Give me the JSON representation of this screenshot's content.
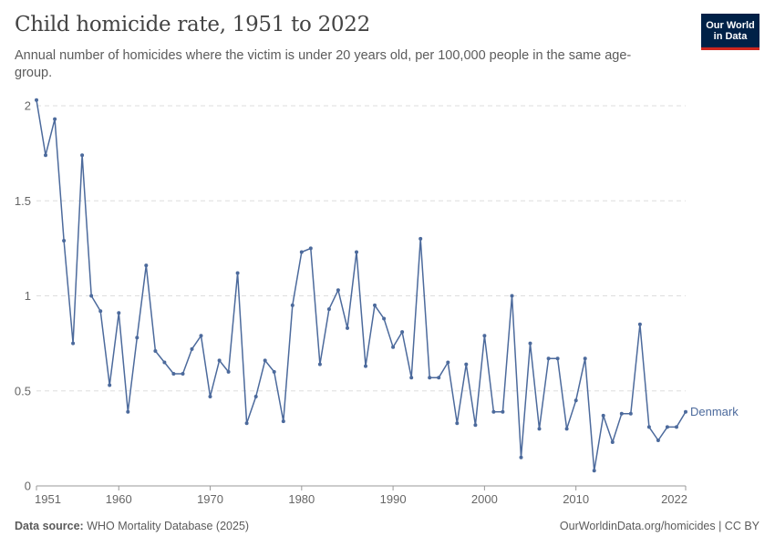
{
  "header": {
    "title": "Child homicide rate, 1951 to 2022",
    "subtitle": "Annual number of homicides where the victim is under 20 years old, per 100,000 people in the same age-group."
  },
  "logo": {
    "line1": "Our World",
    "line2": "in Data"
  },
  "footer": {
    "source_label": "Data source:",
    "source_value": "WHO Mortality Database (2025)",
    "credit": "OurWorldinData.org/homicides | CC BY"
  },
  "colors": {
    "series": "#4c6a9c",
    "grid": "#dddddd",
    "axis": "#666666",
    "logo_bg": "#002147",
    "logo_accent": "#ce261e"
  },
  "chart_data": {
    "type": "line",
    "title": "Child homicide rate, 1951 to 2022",
    "xlim": [
      1951,
      2022
    ],
    "ylim": [
      0,
      2
    ],
    "x_ticks": [
      1951,
      1960,
      1970,
      1980,
      1990,
      2000,
      2010,
      2022
    ],
    "y_ticks": [
      0,
      0.5,
      1,
      1.5,
      2
    ],
    "y_tick_labels": [
      "0",
      "0.5",
      "1",
      "1.5",
      "2"
    ],
    "grid": "horizontal dashed",
    "legend": "inline label at end of line",
    "series": [
      {
        "name": "Denmark",
        "x": [
          1951,
          1952,
          1953,
          1954,
          1955,
          1956,
          1957,
          1958,
          1959,
          1960,
          1961,
          1962,
          1963,
          1964,
          1965,
          1966,
          1967,
          1968,
          1969,
          1970,
          1971,
          1972,
          1973,
          1974,
          1975,
          1976,
          1977,
          1978,
          1979,
          1980,
          1981,
          1982,
          1983,
          1984,
          1985,
          1986,
          1987,
          1988,
          1989,
          1990,
          1991,
          1992,
          1993,
          1994,
          1995,
          1996,
          1997,
          1998,
          1999,
          2000,
          2001,
          2002,
          2003,
          2004,
          2005,
          2006,
          2007,
          2008,
          2009,
          2010,
          2011,
          2012,
          2013,
          2014,
          2015,
          2016,
          2017,
          2018,
          2019,
          2020,
          2021,
          2022
        ],
        "values": [
          2.03,
          1.74,
          1.93,
          1.29,
          0.75,
          1.74,
          1.0,
          0.92,
          0.53,
          0.91,
          0.39,
          0.78,
          1.16,
          0.71,
          0.65,
          0.59,
          0.59,
          0.72,
          0.79,
          0.47,
          0.66,
          0.6,
          1.12,
          0.33,
          0.47,
          0.66,
          0.6,
          0.34,
          0.95,
          1.23,
          1.25,
          0.64,
          0.93,
          1.03,
          0.83,
          1.23,
          0.63,
          0.95,
          0.88,
          0.73,
          0.81,
          0.57,
          1.3,
          0.57,
          0.57,
          0.65,
          0.33,
          0.64,
          0.32,
          0.79,
          0.39,
          0.39,
          1.0,
          0.15,
          0.75,
          0.3,
          0.67,
          0.67,
          0.3,
          0.45,
          0.67,
          0.08,
          0.37,
          0.23,
          0.38,
          0.38,
          0.85,
          0.31,
          0.24,
          0.31,
          0.31,
          0.39
        ]
      }
    ]
  }
}
